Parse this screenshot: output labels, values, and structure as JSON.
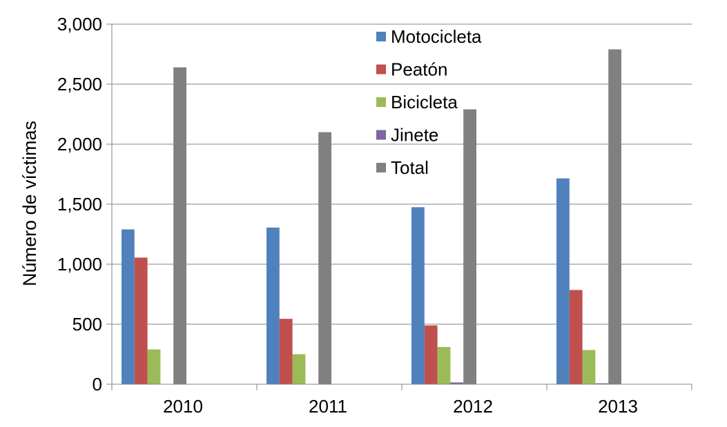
{
  "chart_data": {
    "type": "bar",
    "title": "",
    "xlabel": "",
    "ylabel": "Número de víctimas",
    "ylim": [
      0,
      3000
    ],
    "yticks": [
      0,
      500,
      1000,
      1500,
      2000,
      2500,
      3000
    ],
    "ytick_labels": [
      "0",
      "500",
      "1,000",
      "1,500",
      "2,000",
      "2,500",
      "3,000"
    ],
    "categories": [
      "2010",
      "2011",
      "2012",
      "2013"
    ],
    "grid": true,
    "legend_position": "top-center",
    "series": [
      {
        "name": "Motocicleta",
        "color": "#4F81BD",
        "values": [
          1290,
          1305,
          1475,
          1715
        ]
      },
      {
        "name": "Peatón",
        "color": "#C0504D",
        "values": [
          1055,
          545,
          490,
          785
        ]
      },
      {
        "name": "Bicicleta",
        "color": "#9BBB59",
        "values": [
          290,
          250,
          310,
          285
        ]
      },
      {
        "name": "Jinete",
        "color": "#8064A2",
        "values": [
          0,
          0,
          15,
          8
        ]
      },
      {
        "name": "Total",
        "color": "#808080",
        "values": [
          2640,
          2100,
          2290,
          2790
        ]
      }
    ]
  }
}
